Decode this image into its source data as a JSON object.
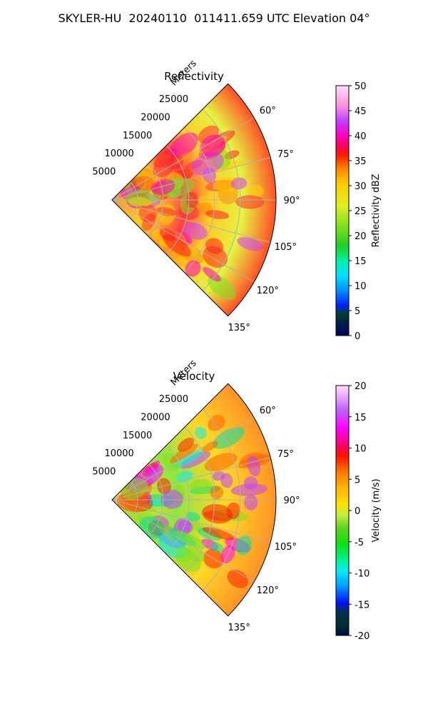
{
  "figure_title": "SKYLER-HU  20240110  011411.659 UTC Elevation 04°",
  "chart_data": [
    {
      "type": "heatmap",
      "projection": "polar-sector",
      "title": "Reflectivity",
      "radial_axis_label": "Meters",
      "radial_ticks": [
        "5000",
        "10000",
        "15000",
        "20000",
        "25000"
      ],
      "radial_tick_values": [
        5000,
        10000,
        15000,
        20000,
        25000
      ],
      "radial_max": 32000,
      "angle_ticks": [
        "60°",
        "75°",
        "90°",
        "105°",
        "120°",
        "135°"
      ],
      "angle_tick_values": [
        60,
        75,
        90,
        105,
        120,
        135
      ],
      "angle_range": [
        45,
        135
      ],
      "grid": true,
      "colorbar": {
        "label": "Reflectivity dBZ",
        "range": [
          0,
          50
        ],
        "ticks": [
          "0",
          "5",
          "10",
          "15",
          "20",
          "25",
          "30",
          "35",
          "40",
          "45",
          "50"
        ],
        "tick_values": [
          0,
          5,
          10,
          15,
          20,
          25,
          30,
          35,
          40,
          45,
          50
        ]
      }
    },
    {
      "type": "heatmap",
      "projection": "polar-sector",
      "title": "Velocity",
      "radial_axis_label": "Meters",
      "radial_ticks": [
        "5000",
        "10000",
        "15000",
        "20000",
        "25000"
      ],
      "radial_tick_values": [
        5000,
        10000,
        15000,
        20000,
        25000
      ],
      "radial_max": 32000,
      "angle_ticks": [
        "60°",
        "75°",
        "90°",
        "105°",
        "120°",
        "135°"
      ],
      "angle_tick_values": [
        60,
        75,
        90,
        105,
        120,
        135
      ],
      "angle_range": [
        45,
        135
      ],
      "grid": true,
      "colorbar": {
        "label": "Velocity (m/s)",
        "range": [
          -20,
          20
        ],
        "ticks": [
          "-20",
          "-15",
          "-10",
          "-5",
          "0",
          "5",
          "10",
          "15",
          "20"
        ],
        "tick_values": [
          -20,
          -15,
          -10,
          -5,
          0,
          5,
          10,
          15,
          20
        ]
      }
    }
  ]
}
